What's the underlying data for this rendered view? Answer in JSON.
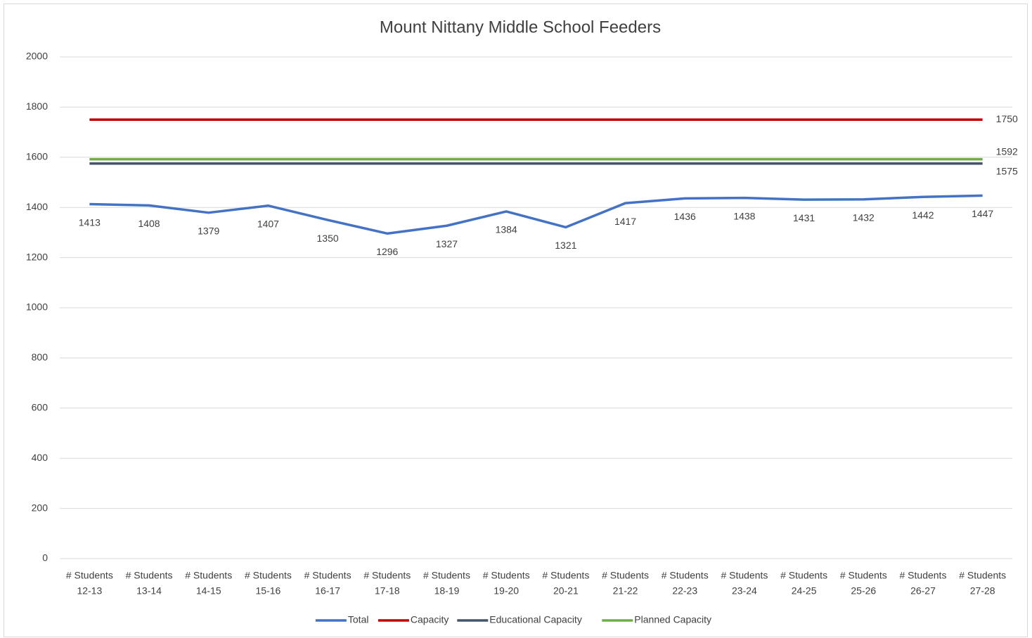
{
  "chart_data": {
    "type": "line",
    "title": "Mount Nittany Middle School Feeders",
    "categories": [
      [
        "# Students",
        "12-13"
      ],
      [
        "# Students",
        "13-14"
      ],
      [
        "# Students",
        "14-15"
      ],
      [
        "# Students",
        "15-16"
      ],
      [
        "# Students",
        "16-17"
      ],
      [
        "# Students",
        "17-18"
      ],
      [
        "# Students",
        "18-19"
      ],
      [
        "# Students",
        "19-20"
      ],
      [
        "# Students",
        "20-21"
      ],
      [
        "# Students",
        "21-22"
      ],
      [
        "# Students",
        "22-23"
      ],
      [
        "# Students",
        "23-24"
      ],
      [
        "# Students",
        "24-25"
      ],
      [
        "# Students",
        "25-26"
      ],
      [
        "# Students",
        "26-27"
      ],
      [
        "# Students",
        "27-28"
      ]
    ],
    "series": [
      {
        "name": "Total",
        "color": "#4472c4",
        "data_labels": "all",
        "values": [
          1413,
          1408,
          1379,
          1407,
          1350,
          1296,
          1327,
          1384,
          1321,
          1417,
          1436,
          1438,
          1431,
          1432,
          1442,
          1447
        ]
      },
      {
        "name": "Capacity",
        "color": "#c00000",
        "data_labels": "last",
        "values": [
          1750,
          1750,
          1750,
          1750,
          1750,
          1750,
          1750,
          1750,
          1750,
          1750,
          1750,
          1750,
          1750,
          1750,
          1750,
          1750
        ]
      },
      {
        "name": "Educational Capacity",
        "color": "#44546a",
        "data_labels": "last",
        "values": [
          1575,
          1575,
          1575,
          1575,
          1575,
          1575,
          1575,
          1575,
          1575,
          1575,
          1575,
          1575,
          1575,
          1575,
          1575,
          1575
        ]
      },
      {
        "name": "Planned Capacity",
        "color": "#70ad47",
        "data_labels": "last",
        "values": [
          1592,
          1592,
          1592,
          1592,
          1592,
          1592,
          1592,
          1592,
          1592,
          1592,
          1592,
          1592,
          1592,
          1592,
          1592,
          1592
        ]
      }
    ],
    "ylim": [
      0,
      2000
    ],
    "yticks": [
      0,
      200,
      400,
      600,
      800,
      1000,
      1200,
      1400,
      1600,
      1800,
      2000
    ],
    "grid": true,
    "legend": "bottom"
  }
}
